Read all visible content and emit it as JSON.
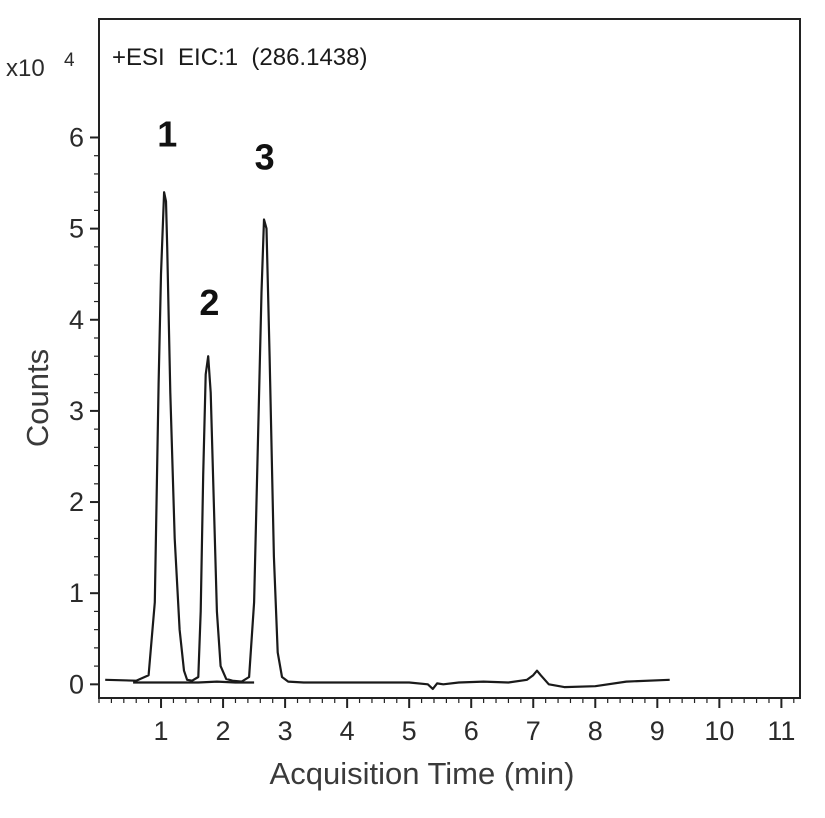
{
  "chart_data": {
    "type": "line",
    "title": "+ESI  EIC:1  (286.1438)",
    "scale_label": "x10",
    "scale_exponent": "4",
    "xlabel": "Acquisition Time (min)",
    "ylabel": "Counts",
    "xlim": [
      0,
      11.3
    ],
    "ylim": [
      -0.15,
      7.3
    ],
    "xticks": [
      "1",
      "2",
      "3",
      "4",
      "5",
      "6",
      "7",
      "8",
      "9",
      "10",
      "11"
    ],
    "yticks": [
      "0",
      "1",
      "2",
      "3",
      "4",
      "5",
      "6"
    ],
    "grid": false,
    "series": [
      {
        "color": "#1a1a1a",
        "x": [
          0.1,
          0.6,
          0.8,
          0.9,
          0.96,
          1.0,
          1.05,
          1.08,
          1.1,
          1.15,
          1.22,
          1.3,
          1.37,
          1.42,
          1.5,
          1.6,
          1.64,
          1.68,
          1.72,
          1.76,
          1.8,
          1.85,
          1.9,
          1.96,
          2.05,
          2.15,
          2.3,
          2.42,
          2.5,
          2.56,
          2.62,
          2.66,
          2.7,
          2.75,
          2.82,
          2.88,
          2.95,
          3.05,
          3.3,
          5.0,
          5.3,
          5.38,
          5.45,
          5.55,
          5.8,
          6.2,
          6.6,
          6.9,
          7.0,
          7.06,
          7.12,
          7.25,
          7.5,
          8.0,
          8.5,
          9.2
        ],
        "y": [
          0.05,
          0.04,
          0.1,
          0.9,
          3.3,
          4.5,
          5.4,
          5.3,
          4.8,
          3.2,
          1.6,
          0.6,
          0.15,
          0.05,
          0.04,
          0.08,
          0.8,
          2.3,
          3.4,
          3.6,
          3.2,
          2.0,
          0.8,
          0.2,
          0.06,
          0.04,
          0.03,
          0.08,
          0.9,
          2.6,
          4.3,
          5.1,
          5.0,
          3.6,
          1.4,
          0.35,
          0.08,
          0.03,
          0.02,
          0.02,
          0.0,
          -0.05,
          0.01,
          0.0,
          0.02,
          0.03,
          0.02,
          0.05,
          0.1,
          0.15,
          0.1,
          0.0,
          -0.03,
          -0.02,
          0.03,
          0.05
        ]
      },
      {
        "color": "#1a1a1a",
        "x": [
          0.55,
          0.75,
          1.0,
          1.3,
          1.6,
          1.9,
          2.2,
          2.5
        ],
        "y": [
          0.02,
          0.02,
          0.02,
          0.02,
          0.02,
          0.03,
          0.02,
          0.02
        ]
      }
    ],
    "peak_labels": [
      {
        "text": "1",
        "x": 1.1,
        "y": 5.9
      },
      {
        "text": "2",
        "x": 1.78,
        "y": 4.05
      },
      {
        "text": "3",
        "x": 2.67,
        "y": 5.65
      }
    ]
  }
}
